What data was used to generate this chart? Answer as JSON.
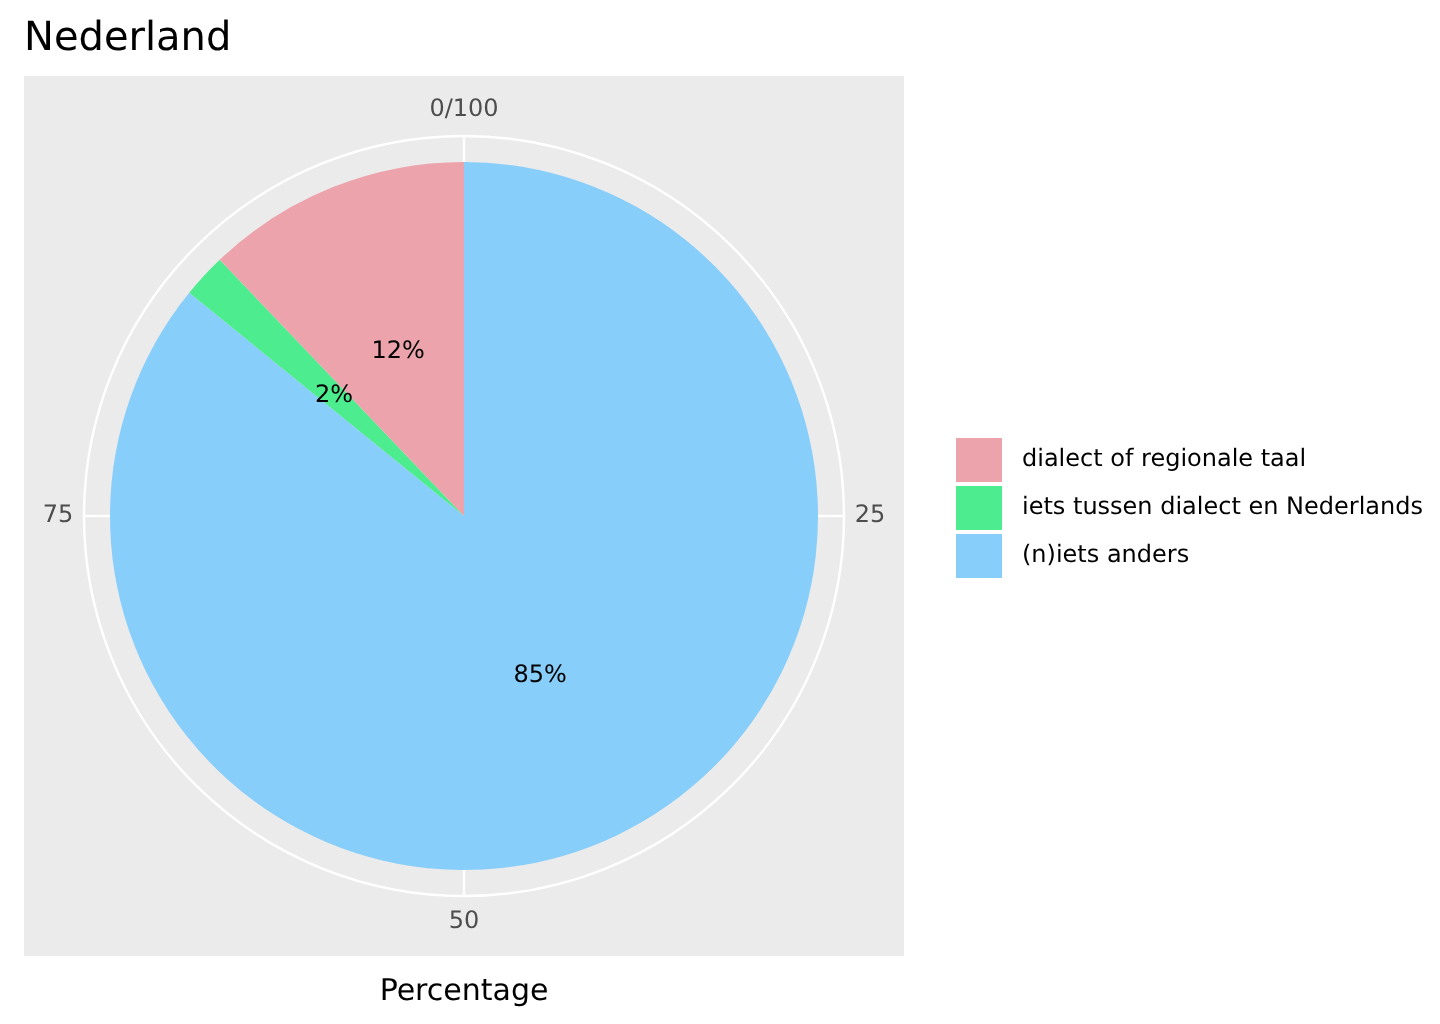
{
  "chart_data": {
    "type": "pie",
    "title": "Nederland",
    "xlabel": "Percentage",
    "categories": [
      "dialect of regionale taal",
      "iets tussen dialect en Nederlands",
      "(n)iets anders"
    ],
    "values": [
      12,
      2,
      85
    ],
    "colors": [
      "#eda3ab",
      "#4ded8f",
      "#87cefa"
    ],
    "value_labels": [
      "12%",
      "2%",
      "85%"
    ],
    "annotations": [
      "0/100",
      "25",
      "50",
      "75"
    ],
    "grid": true,
    "legend": "right"
  }
}
